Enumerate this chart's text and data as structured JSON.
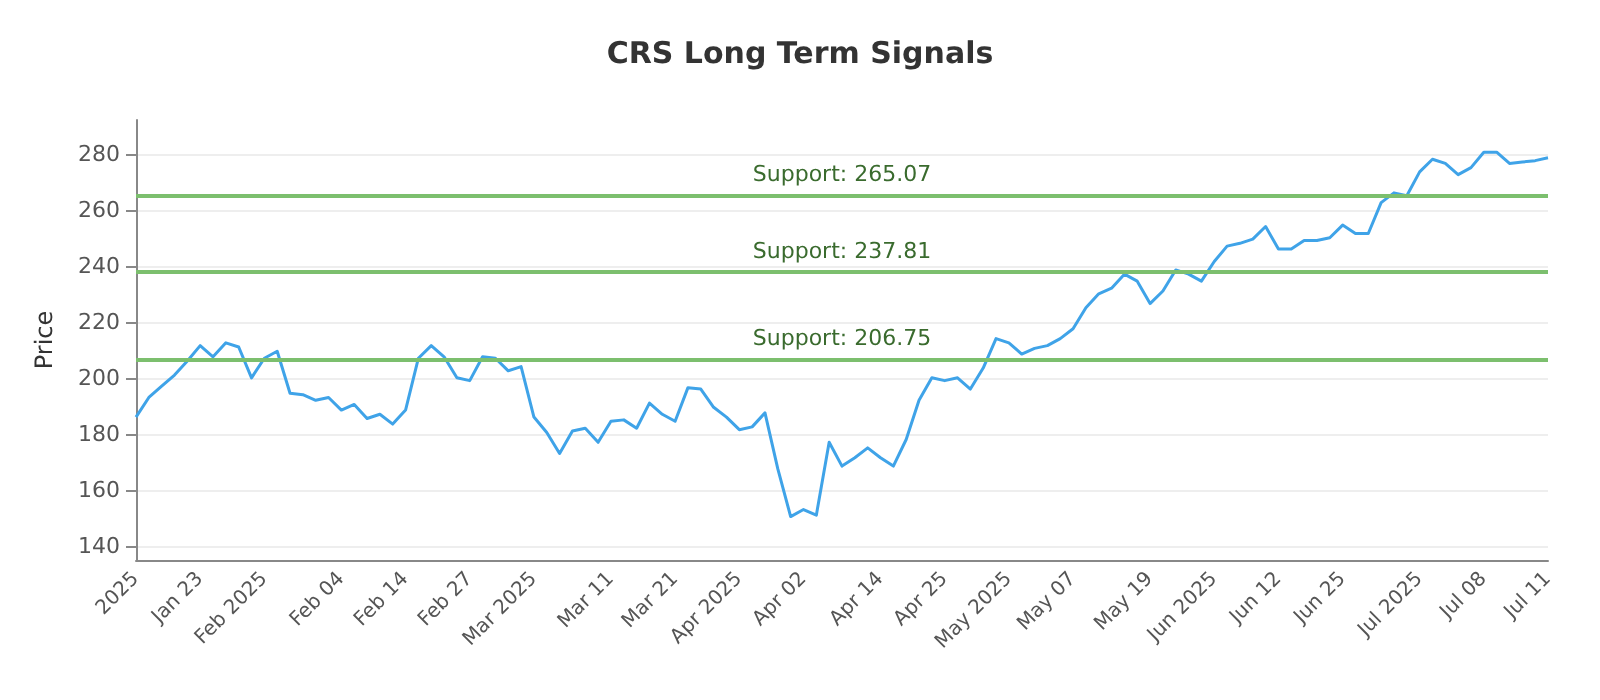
{
  "chart_data": {
    "type": "line",
    "title": "CRS Long Term Signals",
    "ylabel": "Price",
    "categories": [
      "2025",
      null,
      null,
      null,
      null,
      "Jan 23",
      null,
      null,
      null,
      null,
      "Feb 2025",
      null,
      null,
      null,
      null,
      null,
      "Feb 04",
      null,
      null,
      null,
      null,
      "Feb 14",
      null,
      null,
      null,
      null,
      "Feb 27",
      null,
      null,
      null,
      null,
      "Mar 2025",
      null,
      null,
      null,
      null,
      null,
      "Mar 11",
      null,
      null,
      null,
      null,
      "Mar 21",
      null,
      null,
      null,
      null,
      "Apr 2025",
      null,
      null,
      null,
      null,
      "Apr 02",
      null,
      null,
      null,
      null,
      null,
      "Apr 14",
      null,
      null,
      null,
      null,
      "Apr 25",
      null,
      null,
      null,
      null,
      "May 2025",
      null,
      null,
      null,
      null,
      "May 07",
      null,
      null,
      null,
      null,
      null,
      "May 19",
      null,
      null,
      null,
      null,
      "Jun 2025",
      null,
      null,
      null,
      null,
      "Jun 12",
      null,
      null,
      null,
      null,
      "Jun 25",
      null,
      null,
      null,
      null,
      null,
      "Jul 2025",
      null,
      null,
      null,
      null,
      "Jul 08",
      null,
      null,
      null,
      null,
      "Jul 11"
    ],
    "series": [
      {
        "color": "#3fa3e8",
        "values": [
          186,
          193,
          197,
          201,
          206,
          211.5,
          207.5,
          212.5,
          211,
          200,
          207,
          209.5,
          194.5,
          194,
          192,
          193,
          188.5,
          190.5,
          185.5,
          187,
          183.5,
          188.5,
          207,
          211.5,
          207.5,
          200,
          199,
          207.5,
          207,
          202.5,
          204,
          186,
          180.5,
          173,
          181,
          182,
          177,
          184.5,
          185,
          182,
          191,
          187,
          184.5,
          196.5,
          196,
          189.5,
          186,
          181.5,
          182.5,
          187.5,
          167.5,
          150.5,
          153,
          151,
          177,
          168.5,
          171.5,
          175,
          171.5,
          168.5,
          178,
          192,
          200,
          199,
          200,
          196,
          203.5,
          214,
          212.5,
          208.5,
          210.5,
          211.5,
          214,
          217.5,
          225,
          230,
          232,
          237,
          234.5,
          226.5,
          231,
          238.5,
          237,
          234.5,
          241.5,
          247,
          248,
          249.5,
          254,
          246,
          246,
          249,
          249,
          250,
          254.5,
          251.5,
          251.5,
          262.5,
          266,
          265,
          273.5,
          278,
          276.5,
          272.5,
          275,
          280.5,
          280.5,
          276.5,
          277,
          277.5,
          278.5
        ]
      }
    ],
    "ylim": [
      135,
      292
    ],
    "yticks": [
      140,
      160,
      180,
      200,
      220,
      240,
      260,
      280
    ],
    "grid": "y",
    "marker": "none",
    "line_style": "solid",
    "ref_lines": [
      {
        "axis": "y",
        "value": 265.07,
        "label": "Support: 265.07",
        "color": "#7cbf6e"
      },
      {
        "axis": "y",
        "value": 237.81,
        "label": "Support: 237.81",
        "color": "#7cbf6e"
      },
      {
        "axis": "y",
        "value": 206.75,
        "label": "Support: 206.75",
        "color": "#7cbf6e"
      }
    ]
  }
}
